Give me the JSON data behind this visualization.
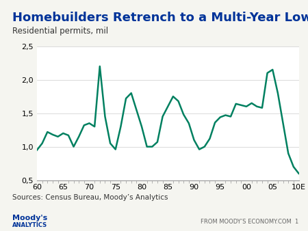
{
  "title": "Homebuilders Retrench to a Multi-Year Low",
  "subtitle": "Residential permits, mil",
  "source": "Sources: Census Bureau, Moody’s Analytics",
  "footer_left": "Moody’s\nANALYTICS",
  "footer_right": "FROM MOODY’S ECONOMY.COM  1",
  "line_color": "#008060",
  "background_color": "#f5f5f0",
  "plot_bg_color": "#ffffff",
  "top_bar_color": "#003399",
  "title_color": "#003399",
  "ylim": [
    0.5,
    2.5
  ],
  "yticks": [
    0.5,
    1.0,
    1.5,
    2.0,
    2.5
  ],
  "ytick_labels": [
    "0,5",
    "1,0",
    "1,5",
    "2,0",
    "2,5"
  ],
  "xtick_labels": [
    "60",
    "65",
    "70",
    "75",
    "80",
    "85",
    "90",
    "95",
    "00",
    "05",
    "10E"
  ],
  "x": [
    60,
    61,
    62,
    63,
    64,
    65,
    66,
    67,
    68,
    69,
    70,
    71,
    72,
    73,
    74,
    75,
    76,
    77,
    78,
    79,
    80,
    81,
    82,
    83,
    84,
    85,
    86,
    87,
    88,
    89,
    90,
    91,
    92,
    93,
    94,
    95,
    96,
    97,
    98,
    99,
    100,
    101,
    102,
    103,
    104,
    105,
    106,
    107,
    108,
    109,
    110
  ],
  "y": [
    0.95,
    1.05,
    1.22,
    1.18,
    1.15,
    1.2,
    1.17,
    1.0,
    1.15,
    1.32,
    1.35,
    1.3,
    2.2,
    1.45,
    1.05,
    0.96,
    1.3,
    1.72,
    1.8,
    1.55,
    1.3,
    1.0,
    1.0,
    1.07,
    1.45,
    1.6,
    1.75,
    1.68,
    1.48,
    1.35,
    1.1,
    0.96,
    1.0,
    1.12,
    1.36,
    1.44,
    1.47,
    1.45,
    1.64,
    1.62,
    1.6,
    1.65,
    1.6,
    1.58,
    2.1,
    2.15,
    1.8,
    1.35,
    0.9,
    0.7,
    0.6
  ],
  "line_width": 1.8,
  "figsize": [
    4.5,
    3.38
  ],
  "dpi": 100
}
